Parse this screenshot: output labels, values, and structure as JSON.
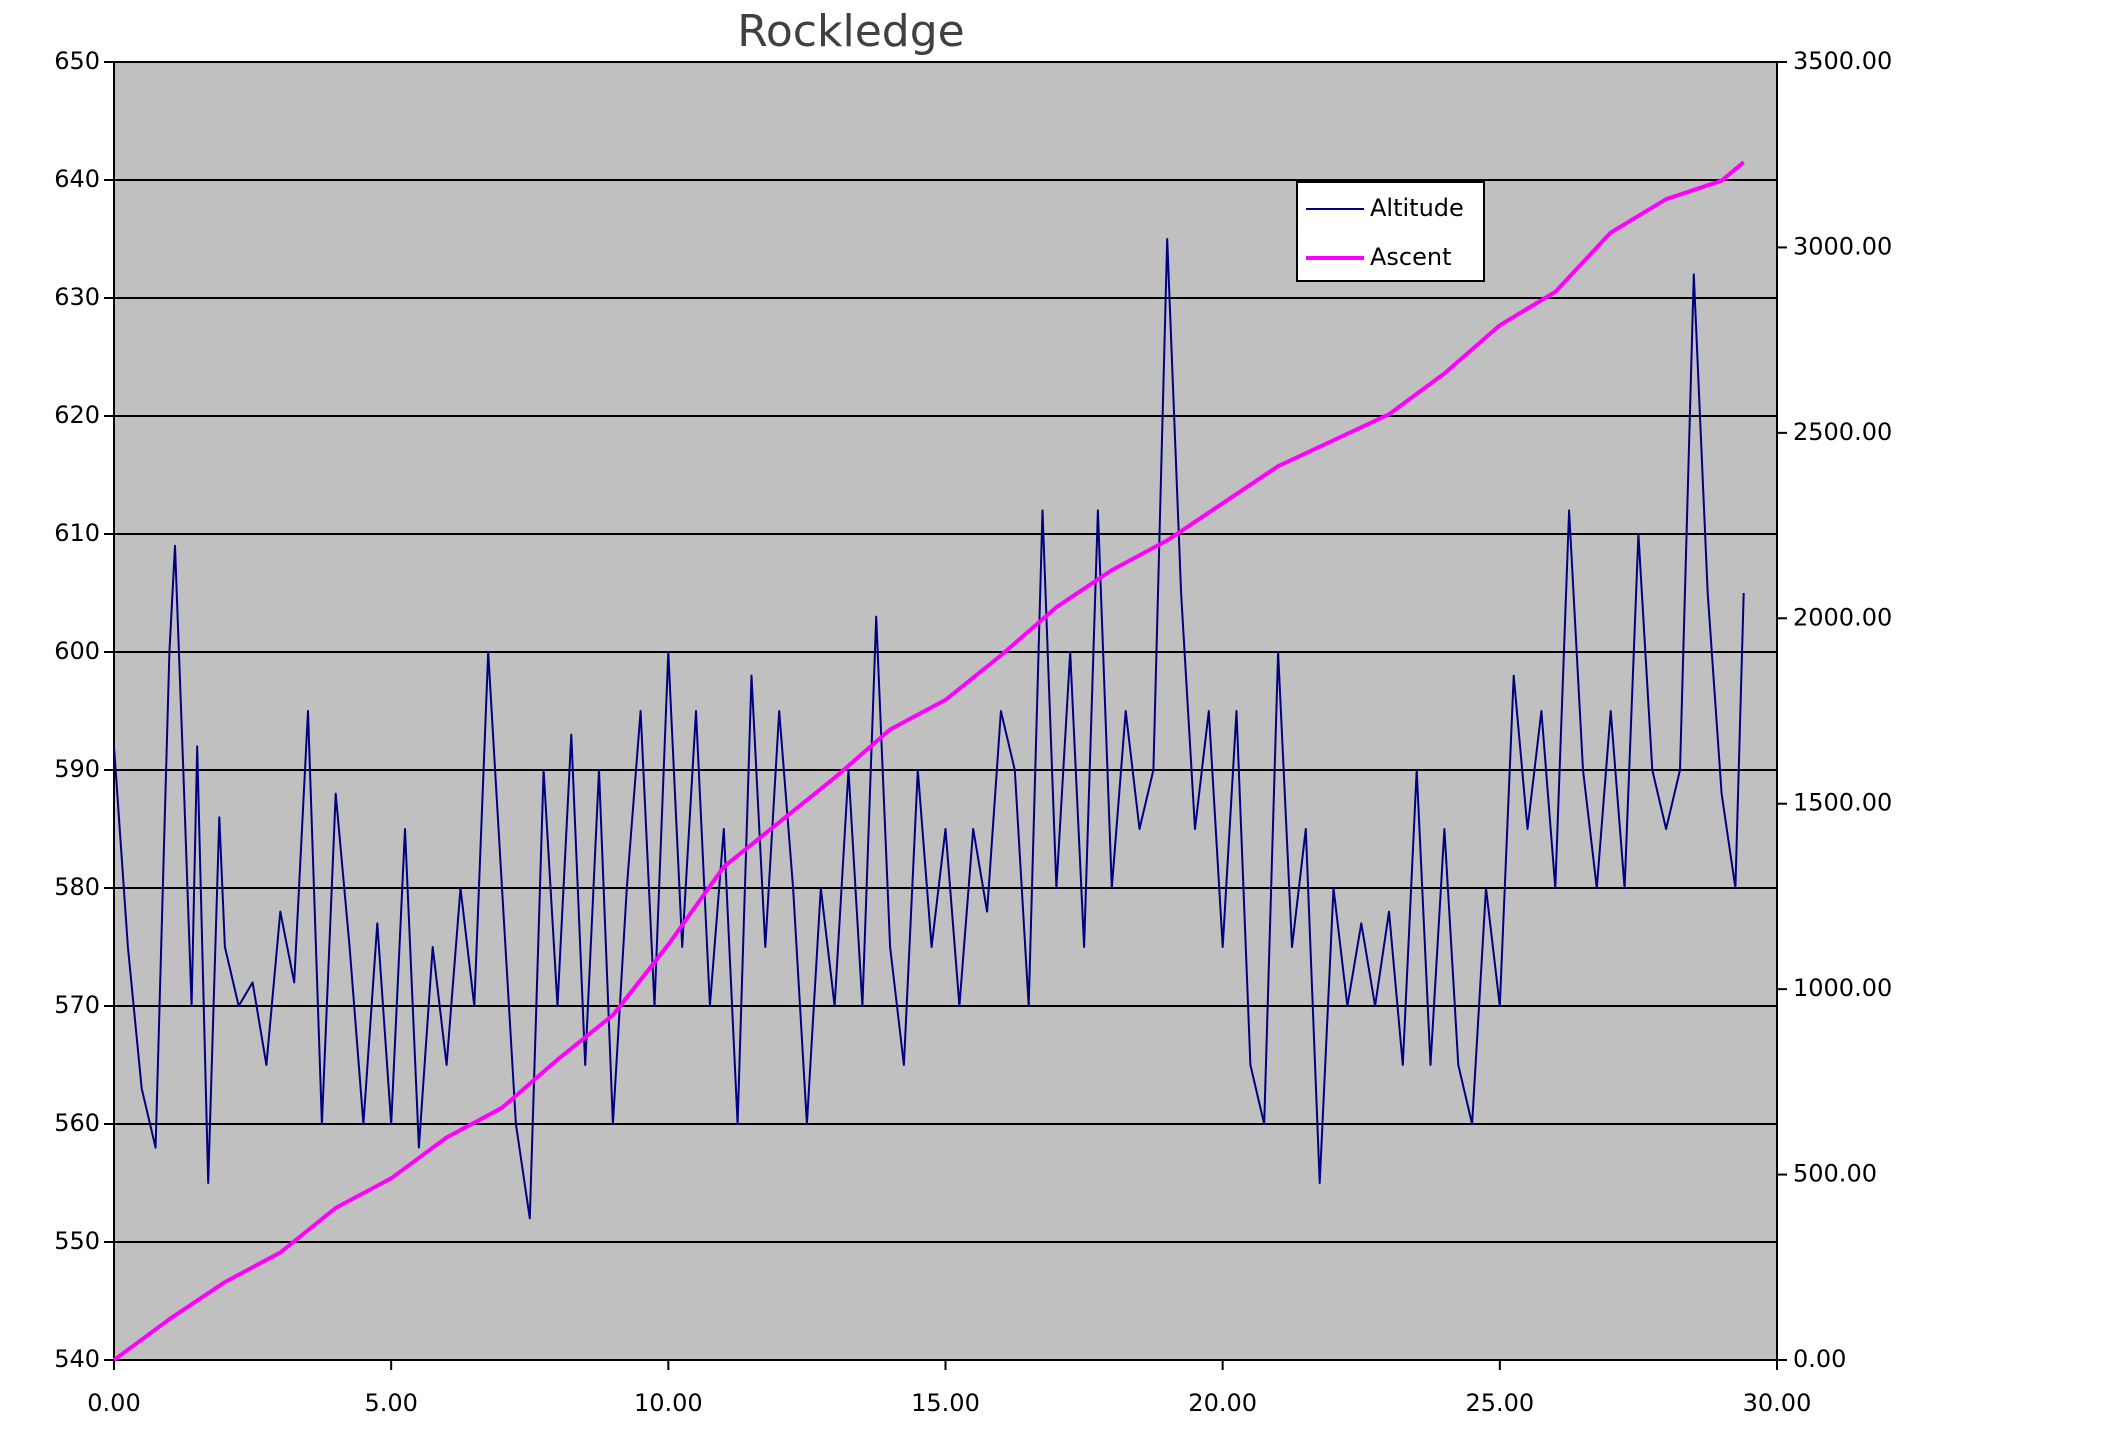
{
  "chart_data": {
    "type": "line",
    "title": "Rockledge",
    "xlim": [
      0,
      30
    ],
    "xticks": [
      {
        "value": 0,
        "label": "0.00"
      },
      {
        "value": 5,
        "label": "5.00"
      },
      {
        "value": 10,
        "label": "10.00"
      },
      {
        "value": 15,
        "label": "15.00"
      },
      {
        "value": 20,
        "label": "20.00"
      },
      {
        "value": 25,
        "label": "25.00"
      },
      {
        "value": 30,
        "label": "30.00"
      }
    ],
    "ylim": [
      540,
      650
    ],
    "yticks": [
      540,
      550,
      560,
      570,
      580,
      590,
      600,
      610,
      620,
      630,
      640,
      650
    ],
    "y2lim": [
      0,
      3500
    ],
    "y2ticks": [
      {
        "value": 0,
        "label": "0.00"
      },
      {
        "value": 500,
        "label": "500.00"
      },
      {
        "value": 1000,
        "label": "1000.00"
      },
      {
        "value": 1500,
        "label": "1500.00"
      },
      {
        "value": 2000,
        "label": "2000.00"
      },
      {
        "value": 2500,
        "label": "2500.00"
      },
      {
        "value": 3000,
        "label": "3000.00"
      },
      {
        "value": 3500,
        "label": "3500.00"
      }
    ],
    "grid": true,
    "series": [
      {
        "name": "Altitude",
        "color": "#000080",
        "x": [
          0,
          0.25,
          0.5,
          0.75,
          1.0,
          1.1,
          1.25,
          1.4,
          1.5,
          1.7,
          1.9,
          2.0,
          2.25,
          2.5,
          2.75,
          3.0,
          3.25,
          3.5,
          3.75,
          4.0,
          4.25,
          4.5,
          4.75,
          5.0,
          5.25,
          5.5,
          5.75,
          6.0,
          6.25,
          6.5,
          6.75,
          7.0,
          7.25,
          7.5,
          7.75,
          8.0,
          8.25,
          8.5,
          8.75,
          9.0,
          9.25,
          9.5,
          9.75,
          10.0,
          10.25,
          10.5,
          10.75,
          11.0,
          11.25,
          11.5,
          11.75,
          12.0,
          12.25,
          12.5,
          12.75,
          13.0,
          13.25,
          13.5,
          13.75,
          14.0,
          14.25,
          14.5,
          14.75,
          15.0,
          15.25,
          15.5,
          15.75,
          16.0,
          16.25,
          16.5,
          16.75,
          17.0,
          17.25,
          17.5,
          17.75,
          18.0,
          18.25,
          18.5,
          18.75,
          19.0,
          19.25,
          19.5,
          19.75,
          20.0,
          20.25,
          20.5,
          20.75,
          21.0,
          21.25,
          21.5,
          21.75,
          22.0,
          22.25,
          22.5,
          22.75,
          23.0,
          23.25,
          23.5,
          23.75,
          24.0,
          24.25,
          24.5,
          24.75,
          25.0,
          25.25,
          25.5,
          25.75,
          26.0,
          26.25,
          26.5,
          26.75,
          27.0,
          27.25,
          27.5,
          27.75,
          28.0,
          28.25,
          28.5,
          28.75,
          29.0,
          29.25,
          29.4
        ],
        "values": [
          592,
          575,
          563,
          558,
          600,
          609,
          590,
          570,
          592,
          555,
          586,
          575,
          570,
          572,
          565,
          578,
          572,
          595,
          560,
          588,
          575,
          560,
          577,
          560,
          585,
          558,
          575,
          565,
          580,
          570,
          600,
          580,
          560,
          552,
          590,
          570,
          593,
          565,
          590,
          560,
          580,
          595,
          570,
          600,
          575,
          595,
          570,
          585,
          560,
          598,
          575,
          595,
          580,
          560,
          580,
          570,
          590,
          570,
          603,
          575,
          565,
          590,
          575,
          585,
          570,
          585,
          578,
          595,
          590,
          570,
          612,
          580,
          600,
          575,
          612,
          580,
          595,
          585,
          590,
          635,
          605,
          585,
          595,
          575,
          595,
          565,
          560,
          600,
          575,
          585,
          555,
          580,
          570,
          577,
          570,
          578,
          565,
          590,
          565,
          585,
          565,
          560,
          580,
          570,
          598,
          585,
          595,
          580,
          612,
          590,
          580,
          595,
          580,
          610,
          590,
          585,
          590,
          632,
          605,
          588,
          580,
          605
        ]
      },
      {
        "name": "Ascent",
        "color": "#ff00ff",
        "axis": "y2",
        "x": [
          0,
          1,
          2,
          3,
          4,
          5,
          6,
          7,
          8,
          9,
          10,
          11,
          12,
          13,
          14,
          15,
          16,
          17,
          18,
          19,
          20,
          21,
          22,
          23,
          24,
          25,
          26,
          27,
          28,
          29,
          29.4
        ],
        "values": [
          0,
          110,
          210,
          290,
          410,
          490,
          600,
          680,
          810,
          930,
          1120,
          1330,
          1450,
          1570,
          1700,
          1780,
          1900,
          2030,
          2130,
          2210,
          2310,
          2410,
          2480,
          2550,
          2660,
          2790,
          2880,
          3040,
          3130,
          3180,
          3230
        ]
      }
    ]
  }
}
